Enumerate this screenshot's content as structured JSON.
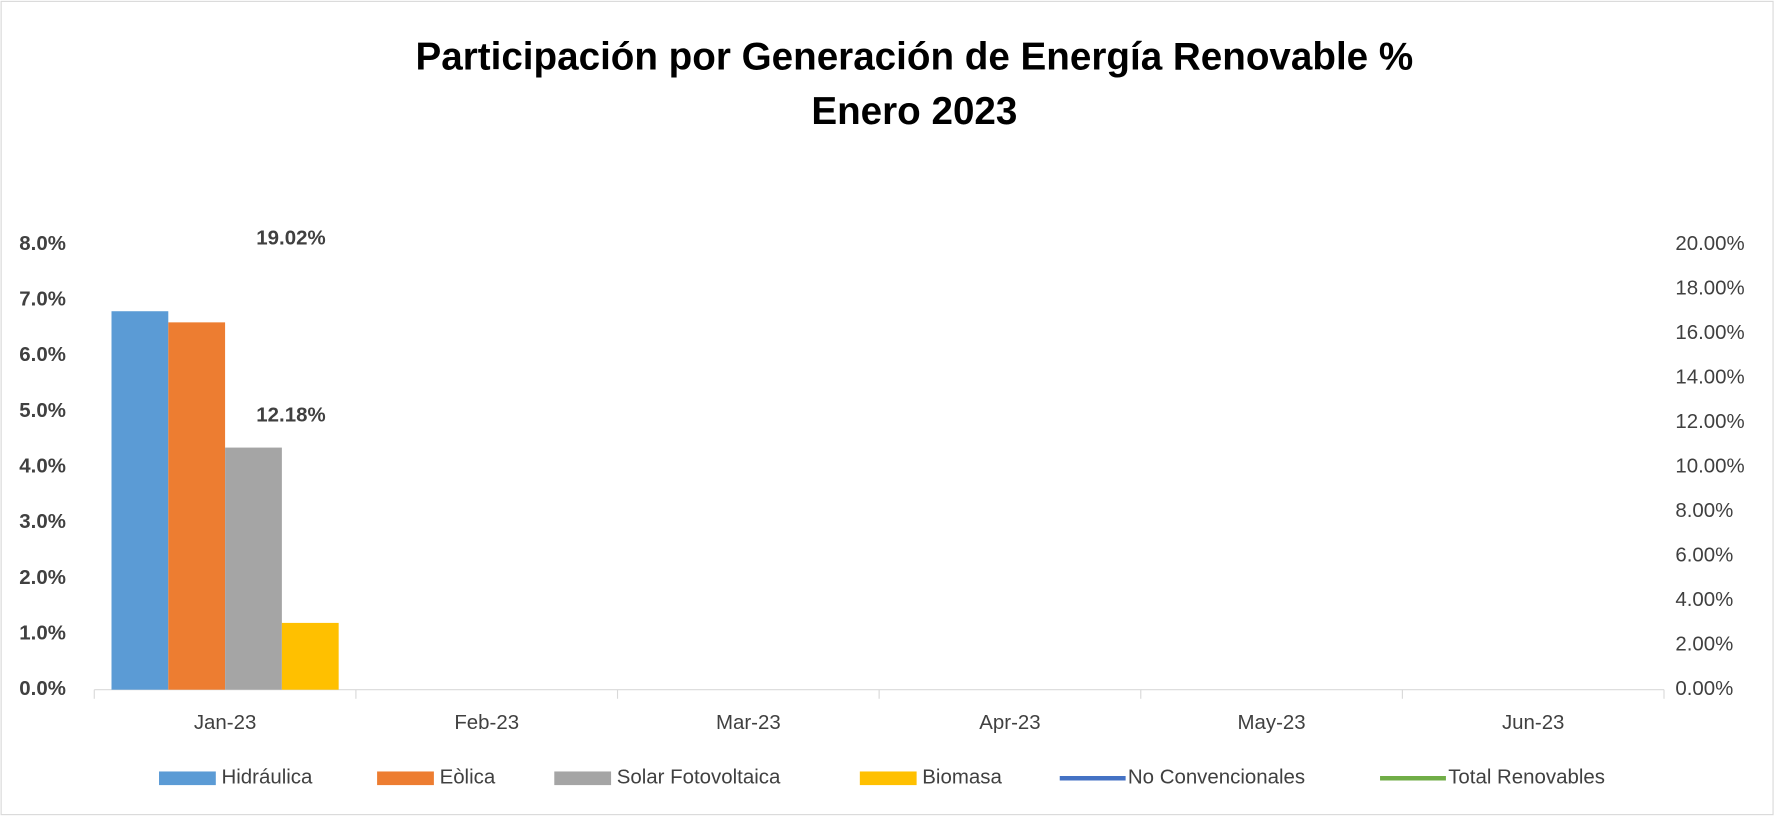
{
  "chart_data": {
    "type": "bar",
    "title": "Participación por Generación de Energía Renovable  %",
    "subtitle": "Enero 2023",
    "categories": [
      "Jan-23",
      "Feb-23",
      "Mar-23",
      "Apr-23",
      "May-23",
      "Jun-23"
    ],
    "series": [
      {
        "name": "Hidráulica",
        "color": "#5b9bd5",
        "type": "bar",
        "values": [
          6.8,
          null,
          null,
          null,
          null,
          null
        ]
      },
      {
        "name": "Eòlica",
        "color": "#ed7d31",
        "type": "bar",
        "values": [
          6.6,
          null,
          null,
          null,
          null,
          null
        ]
      },
      {
        "name": "Solar Fotovoltaica",
        "color": "#a5a5a5",
        "type": "bar",
        "values": [
          4.35,
          null,
          null,
          null,
          null,
          null
        ]
      },
      {
        "name": "Biomasa",
        "color": "#ffc000",
        "type": "bar",
        "values": [
          1.2,
          null,
          null,
          null,
          null,
          null
        ]
      },
      {
        "name": "No Convencionales",
        "color": "#4472c4",
        "type": "line",
        "axis": "y2",
        "values": [
          12.18,
          null,
          null,
          null,
          null,
          null
        ],
        "value_labels": [
          "12.18%",
          null,
          null,
          null,
          null,
          null
        ]
      },
      {
        "name": "Total Renovables",
        "color": "#70ad47",
        "type": "line",
        "axis": "y2",
        "values": [
          19.02,
          null,
          null,
          null,
          null,
          null
        ],
        "value_labels": [
          "19.02%",
          null,
          null,
          null,
          null,
          null
        ]
      }
    ],
    "ylim": [
      0,
      8
    ],
    "yticks": [
      {
        "value": 0,
        "label": "0.0%"
      },
      {
        "value": 1,
        "label": "1.0%"
      },
      {
        "value": 2,
        "label": "2.0%"
      },
      {
        "value": 3,
        "label": "3.0%"
      },
      {
        "value": 4,
        "label": "4.0%"
      },
      {
        "value": 5,
        "label": "5.0%"
      },
      {
        "value": 6,
        "label": "6.0%"
      },
      {
        "value": 7,
        "label": "7.0%"
      },
      {
        "value": 8,
        "label": "8.0%"
      }
    ],
    "y2lim": [
      0,
      20
    ],
    "y2ticks": [
      {
        "value": 0,
        "label": "0.00%"
      },
      {
        "value": 2,
        "label": "2.00%"
      },
      {
        "value": 4,
        "label": "4.00%"
      },
      {
        "value": 6,
        "label": "6.00%"
      },
      {
        "value": 8,
        "label": "8.00%"
      },
      {
        "value": 10,
        "label": "10.00%"
      },
      {
        "value": 12,
        "label": "12.00%"
      },
      {
        "value": 14,
        "label": "14.00%"
      },
      {
        "value": 16,
        "label": "16.00%"
      },
      {
        "value": 18,
        "label": "18.00%"
      },
      {
        "value": 20,
        "label": "20.00%"
      }
    ],
    "legend": "bottom"
  }
}
